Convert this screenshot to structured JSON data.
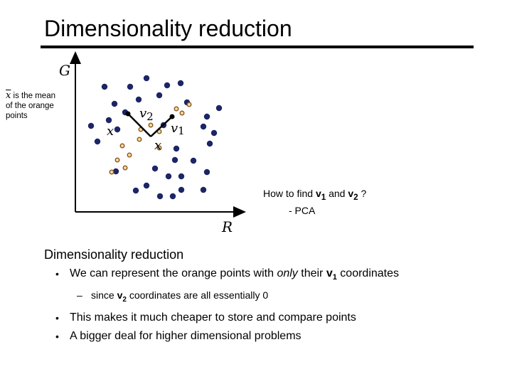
{
  "slide": {
    "title": "Dimensionality reduction",
    "note": {
      "var": "x",
      "lines": [
        "is the mean",
        "of the orange",
        "points"
      ]
    },
    "figure": {
      "axis_y_label": "G",
      "axis_x_label": "R",
      "v2_label": "v",
      "v2_sub": "2",
      "v1_label": "v",
      "v1_sub": "1",
      "x_label": "x",
      "xbar_label": "x",
      "colors": {
        "blue": "#1c2566",
        "orange_fill": "#f6d6a2",
        "orange_stroke": "#8a5a1c"
      },
      "blue_points": 33,
      "orange_points": 11
    },
    "question": {
      "text_pre": "How to find ",
      "v1": "v",
      "v1_sub": "1",
      "and": " and ",
      "v2": "v",
      "v2_sub": "2",
      "text_post": " ?",
      "answer": "- PCA"
    },
    "section_heading": "Dimensionality reduction",
    "bullets": {
      "b1_pre": "We can represent the orange points with ",
      "b1_em": "only",
      "b1_mid": " their ",
      "b1_v": "v",
      "b1_sub": "1",
      "b1_post": " coordinates",
      "sub_pre": "since ",
      "sub_v": "v",
      "sub_sub": "2",
      "sub_post": " coordinates are all essentially 0",
      "b2": "This makes it much cheaper to store and compare points",
      "b3": "A bigger deal for higher dimensional problems"
    }
  }
}
